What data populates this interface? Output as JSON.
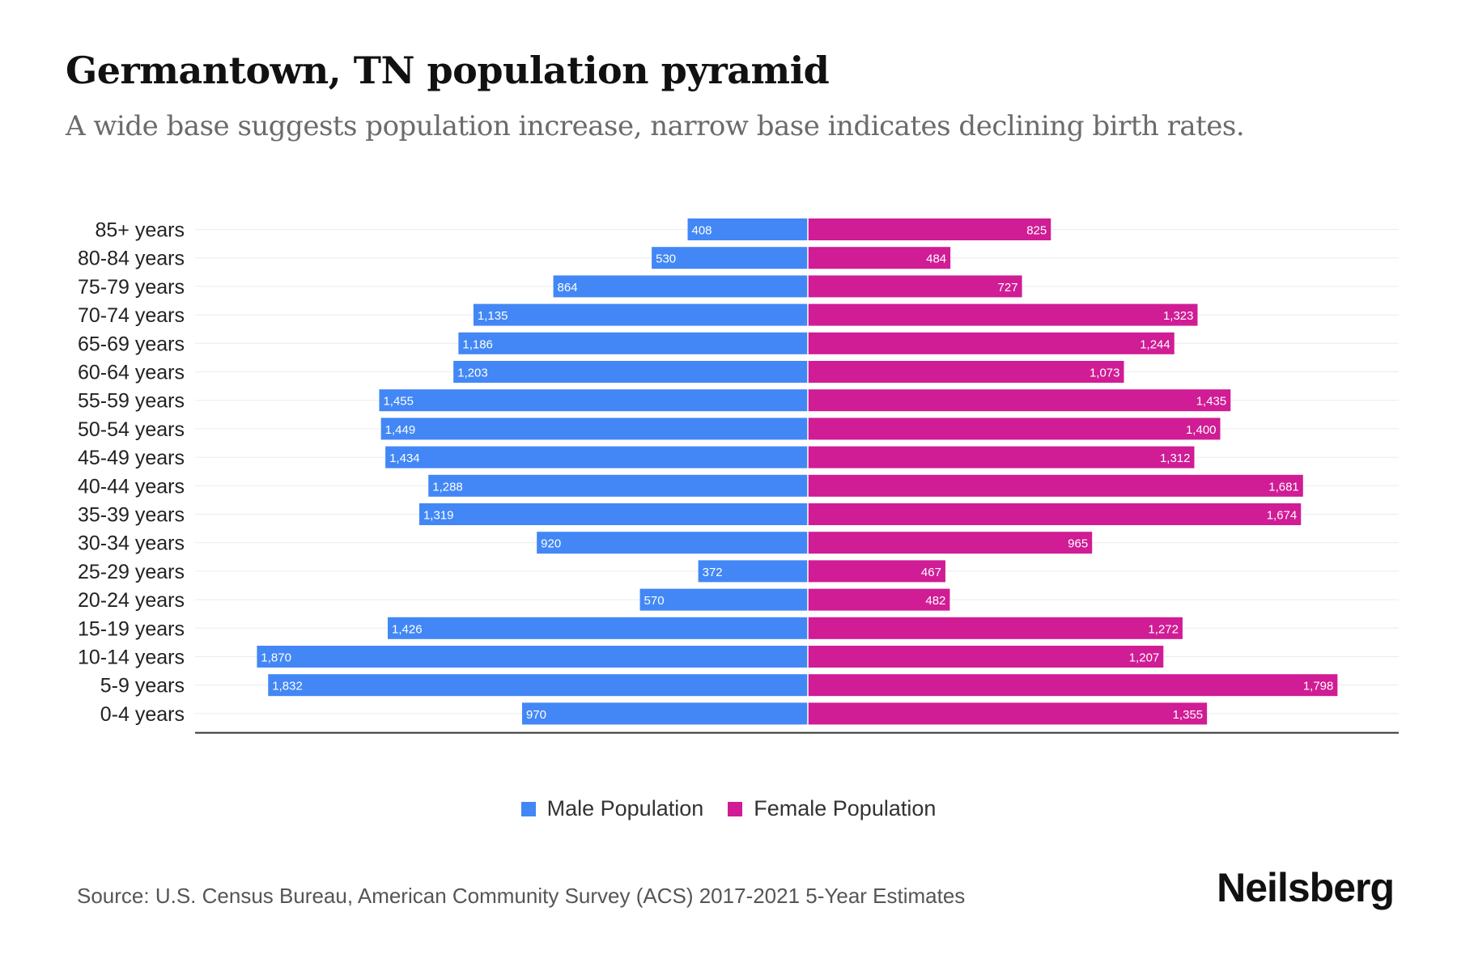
{
  "header": {
    "title": "Germantown, TN population pyramid",
    "subtitle": "A wide base suggests population increase, narrow base indicates declining birth rates."
  },
  "chart_data": {
    "type": "bar",
    "orientation": "horizontal-pyramid",
    "categories": [
      "85+ years",
      "80-84 years",
      "75-79 years",
      "70-74 years",
      "65-69 years",
      "60-64 years",
      "55-59 years",
      "50-54 years",
      "45-49 years",
      "40-44 years",
      "35-39 years",
      "30-34 years",
      "25-29 years",
      "20-24 years",
      "15-19 years",
      "10-14 years",
      "5-9 years",
      "0-4 years"
    ],
    "series": [
      {
        "name": "Male Population",
        "color": "#4287f5",
        "values": [
          408,
          530,
          864,
          1135,
          1186,
          1203,
          1455,
          1449,
          1434,
          1288,
          1319,
          920,
          372,
          570,
          1426,
          1870,
          1832,
          970
        ],
        "labels": [
          "408",
          "530",
          "864",
          "1,135",
          "1,186",
          "1,203",
          "1,455",
          "1,449",
          "1,434",
          "1,288",
          "1,319",
          "920",
          "372",
          "570",
          "1,426",
          "1,870",
          "1,832",
          "970"
        ]
      },
      {
        "name": "Female Population",
        "color": "#d01c95",
        "values": [
          825,
          484,
          727,
          1323,
          1244,
          1073,
          1435,
          1400,
          1312,
          1681,
          1674,
          965,
          467,
          482,
          1272,
          1207,
          1798,
          1355
        ],
        "labels": [
          "825",
          "484",
          "727",
          "1,323",
          "1,244",
          "1,073",
          "1,435",
          "1,400",
          "1,312",
          "1,681",
          "1,674",
          "965",
          "467",
          "482",
          "1,272",
          "1,207",
          "1,798",
          "1,355"
        ]
      }
    ],
    "xlim": [
      -2080,
      2080
    ],
    "legend": "bottom-center",
    "grid": true
  },
  "legend": {
    "male_label": "Male Population",
    "female_label": "Female Population",
    "male_color": "#4287f5",
    "female_color": "#d01c95"
  },
  "footer": {
    "source": "Source: U.S. Census Bureau, American Community Survey (ACS) 2017-2021 5-Year Estimates",
    "brand": "Neilsberg"
  }
}
